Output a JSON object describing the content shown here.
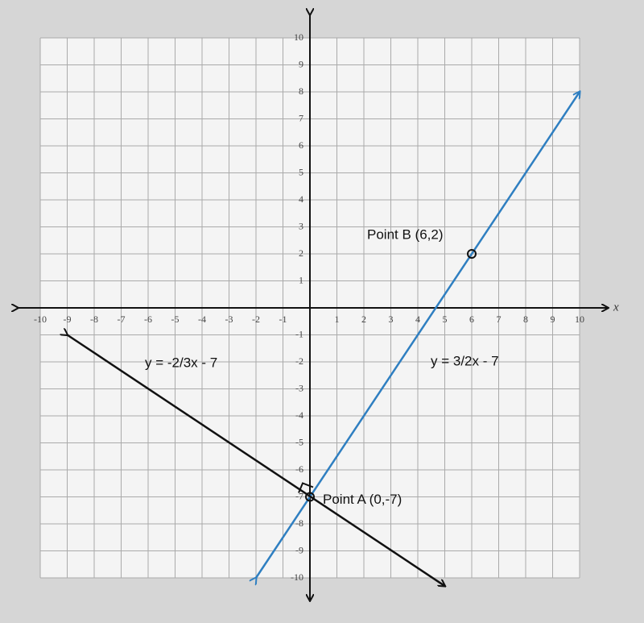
{
  "chart_data": {
    "type": "line",
    "xlabel": "x",
    "xlim": [
      -10,
      10
    ],
    "ylim": [
      -10,
      10
    ],
    "xticks": [
      -10,
      -9,
      -8,
      -7,
      -6,
      -5,
      -4,
      -3,
      -2,
      -1,
      1,
      2,
      3,
      4,
      5,
      6,
      7,
      8,
      9,
      10
    ],
    "yticks": [
      -10,
      -9,
      -8,
      -7,
      -6,
      -5,
      -4,
      -3,
      -2,
      -1,
      1,
      2,
      3,
      4,
      5,
      6,
      7,
      8,
      9,
      10
    ],
    "grid": true,
    "series": [
      {
        "name": "y = 3/2x - 7",
        "color": "#2f7fc1",
        "x": [
          -2,
          10
        ],
        "values": [
          -10,
          8
        ]
      },
      {
        "name": "y = -2/3x - 7",
        "color": "#111111",
        "x": [
          -9,
          5
        ],
        "values": [
          -1,
          -10.3
        ]
      }
    ],
    "points": [
      {
        "label": "Point A (0,-7)",
        "x": 0,
        "y": -7
      },
      {
        "label": "Point B (6,2)",
        "x": 6,
        "y": 2
      }
    ]
  }
}
